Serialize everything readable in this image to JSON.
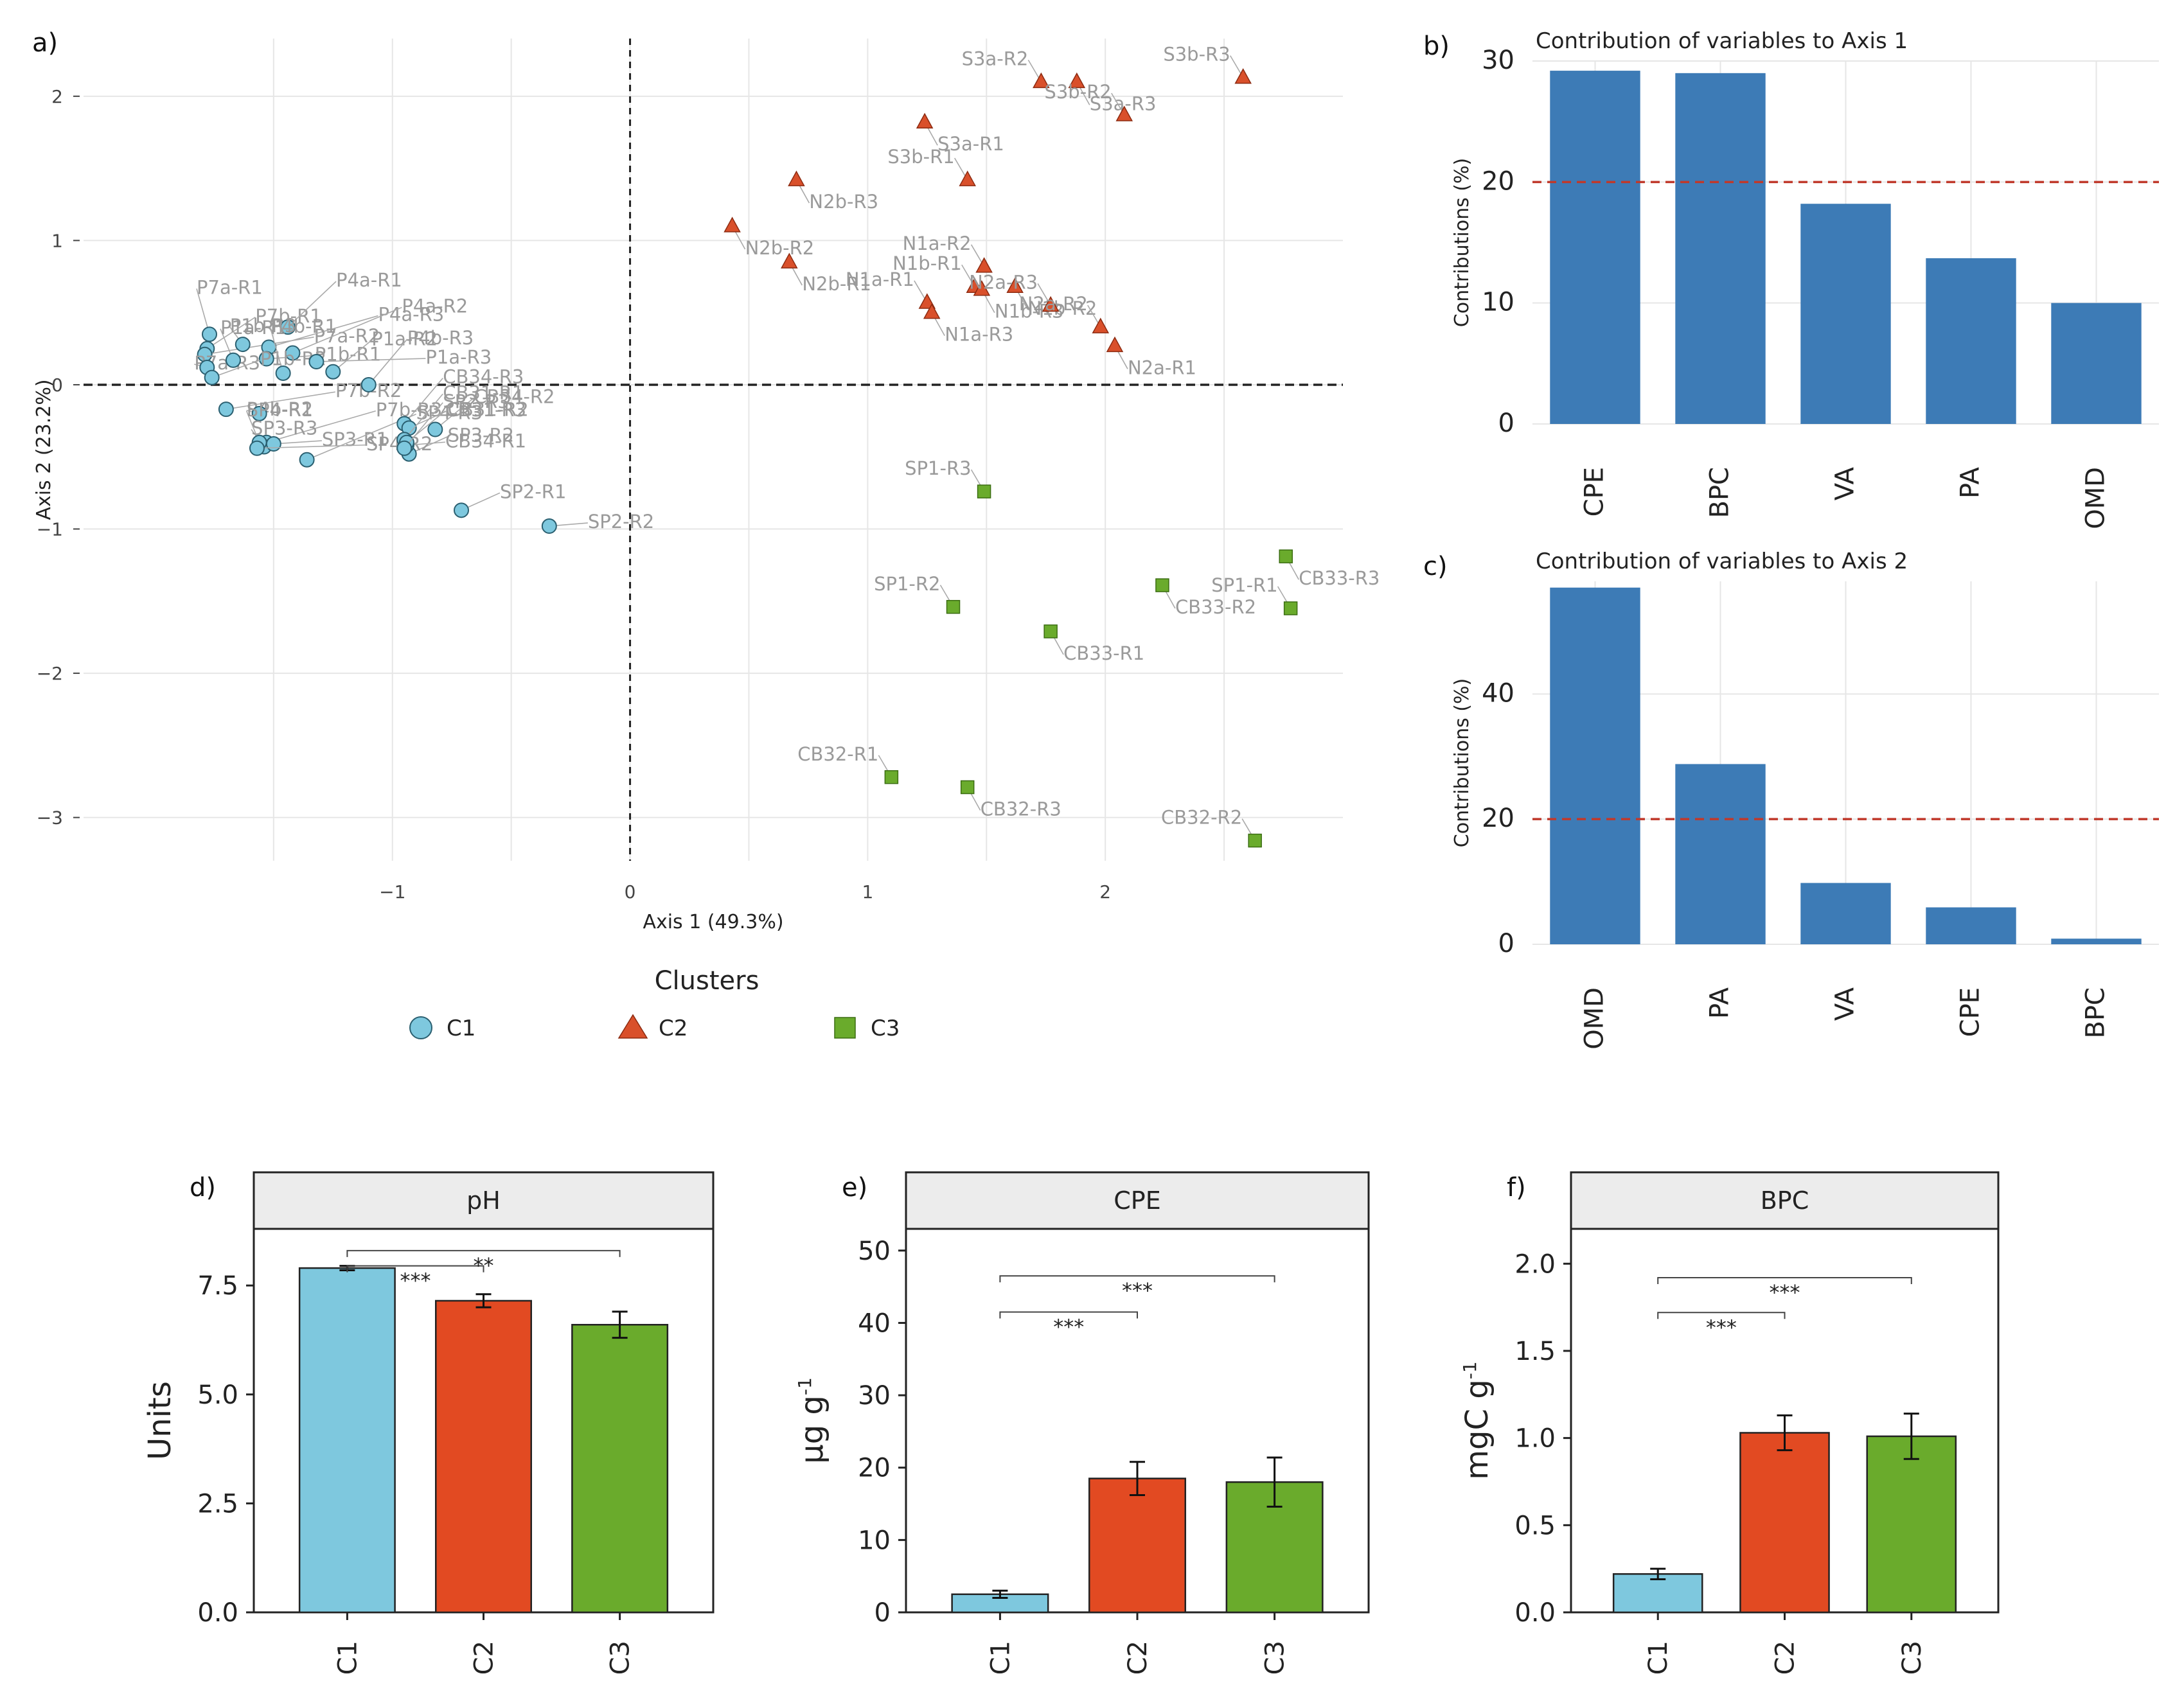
{
  "chart_data": [
    {
      "id": "a",
      "panel_label": "a)",
      "type": "scatter",
      "xlabel": "Axis 1 (49.3%)",
      "ylabel": "Axis 2 (23.2%)",
      "xlim": [
        -2.3,
        3.0
      ],
      "ylim": [
        -3.3,
        2.4
      ],
      "x_ticks": [
        -1,
        0,
        1,
        2
      ],
      "y_ticks": [
        -3,
        -2,
        -1,
        0,
        1,
        2
      ],
      "legend_title": "Clusters",
      "legend_position": "bottom",
      "series": [
        {
          "name": "C1",
          "shape": "circle",
          "color": "#7ec8de",
          "points": [
            {
              "label": "P7a-R1",
              "x": -1.77,
              "y": 0.35
            },
            {
              "label": "P7b-R1",
              "x": -1.78,
              "y": 0.25
            },
            {
              "label": "P7a-R2",
              "x": -1.79,
              "y": 0.21
            },
            {
              "label": "P7a-R3",
              "x": -1.78,
              "y": 0.12
            },
            {
              "label": "P4a-R1",
              "x": -1.44,
              "y": 0.4
            },
            {
              "label": "P4a-R3",
              "x": -1.52,
              "y": 0.26
            },
            {
              "label": "P1b-R3",
              "x": -1.63,
              "y": 0.28
            },
            {
              "label": "P1b-R1",
              "x": -1.53,
              "y": 0.18
            },
            {
              "label": "P4a-R2",
              "x": -1.42,
              "y": 0.22
            },
            {
              "label": "P1a-R1",
              "x": -1.67,
              "y": 0.17
            },
            {
              "label": "P1b-R2",
              "x": -1.76,
              "y": 0.05
            },
            {
              "label": "P1a-R3",
              "x": -1.32,
              "y": 0.16
            },
            {
              "label": "P4b-R1",
              "x": -1.46,
              "y": 0.08
            },
            {
              "label": "P1a-R2",
              "x": -1.25,
              "y": 0.09
            },
            {
              "label": "P7b-R2",
              "x": -1.7,
              "y": -0.17
            },
            {
              "label": "P4b-R2",
              "x": -1.56,
              "y": -0.2
            },
            {
              "label": "P4b-R3",
              "x": -1.1,
              "y": 0.0
            },
            {
              "label": "P7b-R3",
              "x": -1.53,
              "y": -0.4
            },
            {
              "label": "SP3-R3",
              "x": -1.54,
              "y": -0.43
            },
            {
              "label": "SP3-R1",
              "x": -1.5,
              "y": -0.41
            },
            {
              "label": "SP4-R3",
              "x": -1.36,
              "y": -0.52
            },
            {
              "label": "SP4-R1",
              "x": -1.56,
              "y": -0.4
            },
            {
              "label": "SP3-R2",
              "x": -0.93,
              "y": -0.48
            },
            {
              "label": "SP4-R2",
              "x": -1.57,
              "y": -0.44
            },
            {
              "label": "CB34-R3",
              "x": -0.95,
              "y": -0.27
            },
            {
              "label": "CB34-R2",
              "x": -0.82,
              "y": -0.31
            },
            {
              "label": "CB31-R2",
              "x": -0.93,
              "y": -0.3
            },
            {
              "label": "CB34-R1",
              "x": -0.94,
              "y": -0.42
            },
            {
              "label": "CB31-R1",
              "x": -0.95,
              "y": -0.38
            },
            {
              "label": "CB31-R3",
              "x": -0.94,
              "y": -0.4
            },
            {
              "label": "SP2-R1",
              "x": -0.71,
              "y": -0.87
            },
            {
              "label": "SP2-R2",
              "x": -0.34,
              "y": -0.98
            },
            {
              "label": "SP2-R3",
              "x": -0.95,
              "y": -0.44
            }
          ]
        },
        {
          "name": "C2",
          "shape": "triangle",
          "color": "#d9502b",
          "points": [
            {
              "label": "S3a-R2",
              "x": 1.73,
              "y": 2.1
            },
            {
              "label": "S3a-R3",
              "x": 1.88,
              "y": 2.1
            },
            {
              "label": "S3b-R3",
              "x": 2.58,
              "y": 2.13
            },
            {
              "label": "S3a-R1",
              "x": 1.24,
              "y": 1.82
            },
            {
              "label": "S3b-R2",
              "x": 2.08,
              "y": 1.87
            },
            {
              "label": "N2b-R3",
              "x": 0.7,
              "y": 1.42
            },
            {
              "label": "S3b-R1",
              "x": 1.42,
              "y": 1.42
            },
            {
              "label": "N2b-R2",
              "x": 0.43,
              "y": 1.1
            },
            {
              "label": "N1a-R2",
              "x": 1.49,
              "y": 0.82
            },
            {
              "label": "N2b-R1",
              "x": 0.67,
              "y": 0.85
            },
            {
              "label": "N1b-R1",
              "x": 1.45,
              "y": 0.68
            },
            {
              "label": "N1b-R2",
              "x": 1.62,
              "y": 0.68
            },
            {
              "label": "N1a-R1",
              "x": 1.25,
              "y": 0.57
            },
            {
              "label": "N1b-R3",
              "x": 1.48,
              "y": 0.66
            },
            {
              "label": "N2a-R3",
              "x": 1.77,
              "y": 0.55
            },
            {
              "label": "N1a-R3",
              "x": 1.27,
              "y": 0.5
            },
            {
              "label": "N2a-R2",
              "x": 1.98,
              "y": 0.4
            },
            {
              "label": "N2a-R1",
              "x": 2.04,
              "y": 0.27
            }
          ]
        },
        {
          "name": "C3",
          "shape": "square",
          "color": "#6aab2c",
          "points": [
            {
              "label": "SP1-R3",
              "x": 1.49,
              "y": -0.74
            },
            {
              "label": "CB33-R3",
              "x": 2.76,
              "y": -1.19
            },
            {
              "label": "SP1-R2",
              "x": 1.36,
              "y": -1.54
            },
            {
              "label": "CB33-R2",
              "x": 2.24,
              "y": -1.39
            },
            {
              "label": "SP1-R1",
              "x": 2.78,
              "y": -1.55
            },
            {
              "label": "CB33-R1",
              "x": 1.77,
              "y": -1.71
            },
            {
              "label": "CB32-R1",
              "x": 1.1,
              "y": -2.72
            },
            {
              "label": "CB32-R3",
              "x": 1.42,
              "y": -2.79
            },
            {
              "label": "CB32-R2",
              "x": 2.63,
              "y": -3.16
            }
          ]
        }
      ]
    },
    {
      "id": "b",
      "panel_label": "b)",
      "type": "bar",
      "title": "Contribution of variables to Axis 1",
      "ylabel": "Contributions (%)",
      "ylim": [
        0,
        30
      ],
      "y_ticks": [
        0,
        10,
        20,
        30
      ],
      "reference_line": 20,
      "categories": [
        "CPE",
        "BPC",
        "VA",
        "PA",
        "OMD"
      ],
      "values": [
        29.2,
        29.0,
        18.2,
        13.7,
        10.0
      ],
      "color": "#3d7bb6"
    },
    {
      "id": "c",
      "panel_label": "c)",
      "type": "bar",
      "title": "Contribution of variables to Axis 2",
      "ylabel": "Contributions (%)",
      "ylim": [
        0,
        58
      ],
      "y_ticks": [
        0,
        20,
        40
      ],
      "reference_line": 20,
      "categories": [
        "OMD",
        "PA",
        "VA",
        "CPE",
        "BPC"
      ],
      "values": [
        57.0,
        28.8,
        9.8,
        5.9,
        0.9
      ],
      "color": "#3d7bb6"
    },
    {
      "id": "d",
      "panel_label": "d)",
      "type": "bar",
      "strip": "pH",
      "ylabel": "Units",
      "ylim": [
        0,
        8.8
      ],
      "y_ticks": [
        0.0,
        2.5,
        5.0,
        7.5
      ],
      "y_tick_labels": [
        "0.0",
        "2.5",
        "5.0",
        "7.5"
      ],
      "categories": [
        "C1",
        "C2",
        "C3"
      ],
      "values": [
        7.9,
        7.15,
        6.6
      ],
      "errors": [
        0.05,
        0.15,
        0.3
      ],
      "colors": [
        "#7ec8de",
        "#e24a22",
        "#6aab2c"
      ],
      "significance": [
        {
          "from": "C1",
          "to": "C2",
          "label": "***",
          "level": 7.95
        },
        {
          "from": "C1",
          "to": "C3",
          "label": "**",
          "level": 8.3
        }
      ]
    },
    {
      "id": "e",
      "panel_label": "e)",
      "type": "bar",
      "strip": "CPE",
      "ylabel": "µg g",
      "ylabel_sup": "-1",
      "ylim": [
        0,
        53
      ],
      "y_ticks": [
        0,
        10,
        20,
        30,
        40,
        50
      ],
      "y_tick_labels": [
        "0",
        "10",
        "20",
        "30",
        "40",
        "50"
      ],
      "categories": [
        "C1",
        "C2",
        "C3"
      ],
      "values": [
        2.5,
        18.5,
        18.0
      ],
      "errors": [
        0.5,
        2.3,
        3.4
      ],
      "colors": [
        "#7ec8de",
        "#e24a22",
        "#6aab2c"
      ],
      "significance": [
        {
          "from": "C1",
          "to": "C2",
          "label": "***",
          "level": 41.5
        },
        {
          "from": "C1",
          "to": "C3",
          "label": "***",
          "level": 46.5
        }
      ]
    },
    {
      "id": "f",
      "panel_label": "f)",
      "type": "bar",
      "strip": "BPC",
      "ylabel": "mgC g",
      "ylabel_sup": "-1",
      "ylim": [
        0,
        2.2
      ],
      "y_ticks": [
        0,
        0.5,
        1.0,
        1.5,
        2.0
      ],
      "y_tick_labels": [
        "0.0",
        "0.5",
        "1.0",
        "1.5",
        "2.0"
      ],
      "categories": [
        "C1",
        "C2",
        "C3"
      ],
      "values": [
        0.22,
        1.03,
        1.01
      ],
      "errors": [
        0.03,
        0.1,
        0.13
      ],
      "colors": [
        "#7ec8de",
        "#e24a22",
        "#6aab2c"
      ],
      "significance": [
        {
          "from": "C1",
          "to": "C2",
          "label": "***",
          "level": 1.72
        },
        {
          "from": "C1",
          "to": "C3",
          "label": "***",
          "level": 1.92
        }
      ]
    }
  ]
}
